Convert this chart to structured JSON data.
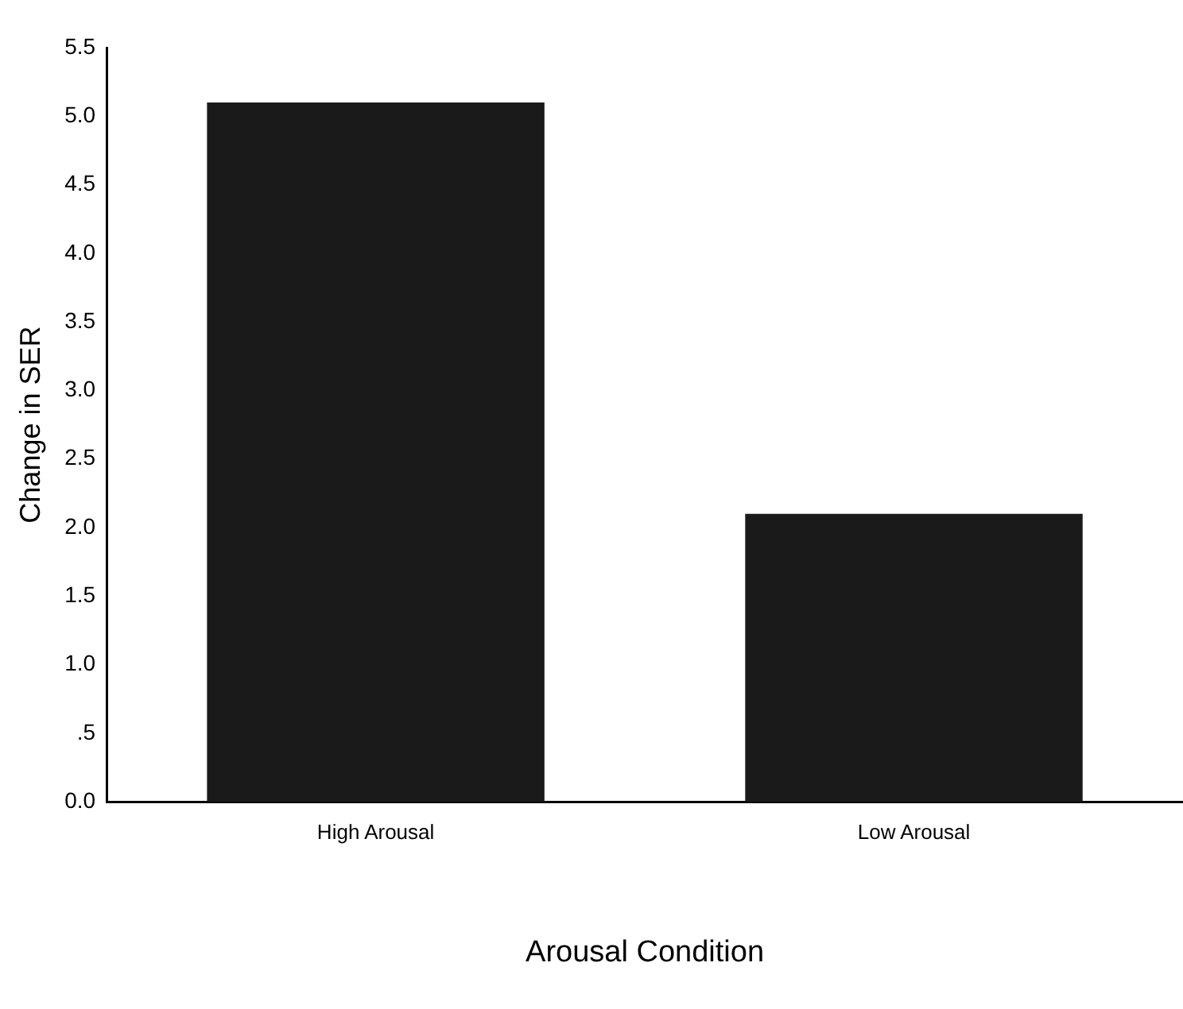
{
  "chart_data": {
    "type": "bar",
    "xlabel": "Arousal Condition",
    "ylabel": "Change in SER",
    "categories": [
      "High Arousal",
      "Low Arousal"
    ],
    "values": [
      5.1,
      2.1
    ],
    "color": "#1a1a1a",
    "ylim": [
      0,
      5.5
    ],
    "yticks": [
      {
        "value": 0,
        "label": "0.0"
      },
      {
        "value": 0.5,
        "label": ".5"
      },
      {
        "value": 1,
        "label": "1.0"
      },
      {
        "value": 1.5,
        "label": "1.5"
      },
      {
        "value": 2,
        "label": "2.0"
      },
      {
        "value": 2.5,
        "label": "2.5"
      },
      {
        "value": 3,
        "label": "3.0"
      },
      {
        "value": 3.5,
        "label": "3.5"
      },
      {
        "value": 4,
        "label": "4.0"
      },
      {
        "value": 4.5,
        "label": "4.5"
      },
      {
        "value": 5,
        "label": "5.0"
      },
      {
        "value": 5.5,
        "label": "5.5"
      }
    ],
    "grid": false,
    "legend": false
  }
}
